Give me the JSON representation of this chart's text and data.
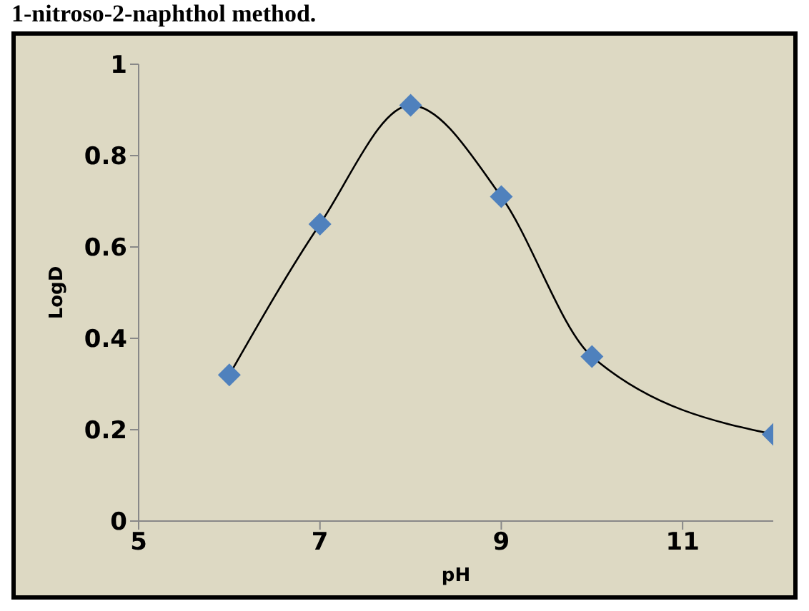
{
  "chart_data": {
    "type": "line",
    "title": "1-nitroso-2-naphthol method.",
    "xlabel": "pH",
    "ylabel": "LogD",
    "x": [
      6,
      7,
      8,
      9,
      10,
      12
    ],
    "series": [
      {
        "color": "#4f81bd",
        "values": [
          0.32,
          0.65,
          0.91,
          0.71,
          0.36,
          0.19
        ]
      }
    ],
    "xlim": [
      5,
      12
    ],
    "xticks": [
      5,
      7,
      9,
      11
    ],
    "ylim": [
      0,
      1
    ],
    "yticks": [
      0,
      0.2,
      0.4,
      0.6,
      0.8,
      1
    ],
    "marker": "diamond",
    "grid": false,
    "legend": false
  }
}
